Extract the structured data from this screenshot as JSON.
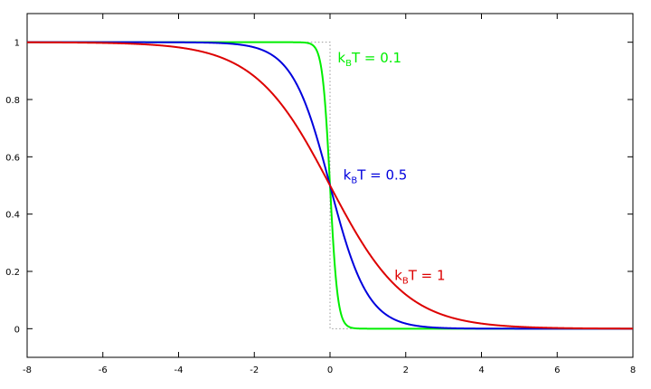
{
  "chart_data": {
    "type": "line",
    "title": "",
    "xlabel": "",
    "ylabel": "",
    "xlim": [
      -8,
      8
    ],
    "ylim": [
      -0.1,
      1.1
    ],
    "grid": false,
    "x_ticks": [
      -8,
      -6,
      -4,
      -2,
      0,
      2,
      4,
      6,
      8
    ],
    "y_ticks": [
      0,
      0.2,
      0.4,
      0.6,
      0.8,
      1
    ],
    "x_tick_labels": [
      "-8",
      "-6",
      "-4",
      "-2",
      "0",
      "2",
      "4",
      "6",
      "8"
    ],
    "y_tick_labels": [
      "0",
      "0.2",
      "0.4",
      "0.6",
      "0.8",
      "1"
    ],
    "function": "1 / (exp(x / kBT) + 1)",
    "series": [
      {
        "kBT": 0.1,
        "color": "#00ee00",
        "label_parts": {
          "k": "k",
          "sub": "B",
          "rest": "T = 0.1"
        },
        "label_at": {
          "x": 0.2,
          "y": 0.93
        },
        "x": [
          -8,
          -1,
          -0.6,
          -0.4,
          -0.3,
          -0.2,
          -0.1,
          0,
          0.1,
          0.2,
          0.3,
          0.4,
          0.6,
          1,
          8
        ],
        "y": [
          1,
          1,
          0.998,
          0.982,
          0.953,
          0.881,
          0.731,
          0.5,
          0.269,
          0.119,
          0.047,
          0.018,
          0.002,
          0,
          0
        ]
      },
      {
        "kBT": 0.5,
        "color": "#0000dd",
        "label_parts": {
          "k": "k",
          "sub": "B",
          "rest": "T = 0.5"
        },
        "label_at": {
          "x": 0.35,
          "y": 0.52
        },
        "x": [
          -8,
          -4,
          -3,
          -2,
          -1.5,
          -1,
          -0.5,
          0,
          0.5,
          1,
          1.5,
          2,
          3,
          4,
          8
        ],
        "y": [
          1,
          1,
          0.998,
          0.982,
          0.953,
          0.881,
          0.731,
          0.5,
          0.269,
          0.119,
          0.047,
          0.018,
          0.002,
          0,
          0
        ]
      },
      {
        "kBT": 1,
        "color": "#dd0000",
        "label_parts": {
          "k": "k",
          "sub": "B",
          "rest": "T = 1"
        },
        "label_at": {
          "x": 1.7,
          "y": 0.17
        },
        "x": [
          -8,
          -6,
          -5,
          -4,
          -3,
          -2,
          -1,
          0,
          1,
          2,
          3,
          4,
          5,
          6,
          8
        ],
        "y": [
          1,
          0.998,
          0.993,
          0.982,
          0.953,
          0.881,
          0.731,
          0.5,
          0.269,
          0.119,
          0.047,
          0.018,
          0.007,
          0.002,
          0
        ]
      }
    ],
    "reference_step": {
      "style": "dotted",
      "color": "#999999",
      "x": [
        -0.6,
        0,
        0,
        0.6
      ],
      "y": [
        1,
        1,
        0,
        0
      ]
    }
  }
}
